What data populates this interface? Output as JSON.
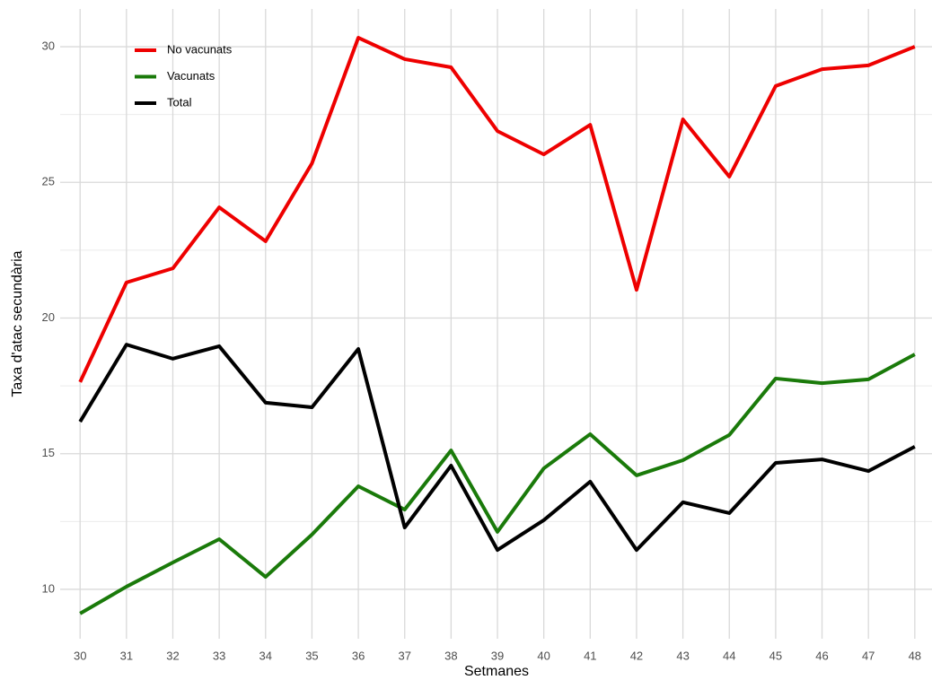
{
  "chart_data": {
    "type": "line",
    "x_label": "Setmanes",
    "y_label": "Taxa d'atac secundària",
    "x": [
      30,
      31,
      32,
      33,
      34,
      35,
      36,
      37,
      38,
      39,
      40,
      41,
      42,
      43,
      44,
      45,
      46,
      47,
      48
    ],
    "series": [
      {
        "name": "No vacunats",
        "color": "#ee0000",
        "values": [
          17.64,
          21.31,
          21.83,
          24.08,
          22.83,
          25.7,
          30.33,
          29.54,
          29.24,
          26.89,
          26.03,
          27.12,
          21.04,
          27.32,
          25.21,
          28.55,
          29.17,
          29.31,
          30.0
        ]
      },
      {
        "name": "Vacunats",
        "color": "#1a7a0a",
        "values": [
          9.11,
          10.1,
          10.99,
          11.85,
          10.46,
          12.02,
          13.8,
          12.94,
          15.12,
          12.12,
          14.46,
          15.72,
          14.2,
          14.76,
          15.69,
          17.77,
          17.6,
          17.74,
          18.66
        ]
      },
      {
        "name": "Total",
        "color": "#000000",
        "values": [
          16.18,
          19.02,
          18.5,
          18.96,
          16.88,
          16.71,
          18.86,
          12.28,
          14.56,
          11.45,
          12.55,
          13.97,
          11.45,
          13.21,
          12.81,
          14.66,
          14.79,
          14.36,
          15.26
        ]
      }
    ],
    "xlim": [
      29.57,
      48.41
    ],
    "ylim": [
      8.18,
      31.39
    ],
    "xticks": [
      30,
      31,
      32,
      33,
      34,
      35,
      36,
      37,
      38,
      39,
      40,
      41,
      42,
      43,
      44,
      45,
      46,
      47,
      48
    ],
    "yticks": [
      10,
      15,
      20,
      25,
      30
    ],
    "grid": true,
    "legend": "top-left"
  }
}
